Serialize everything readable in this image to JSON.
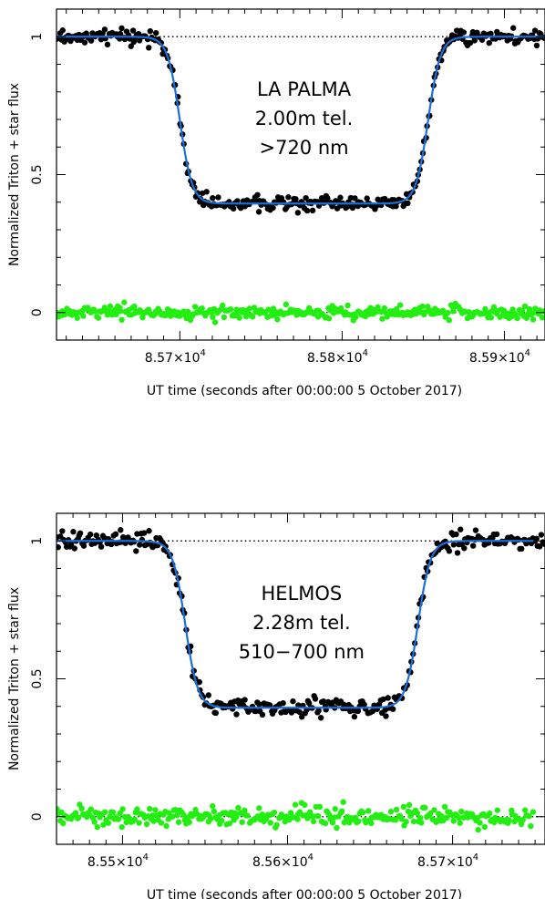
{
  "chart_data": [
    {
      "type": "scatter",
      "title": "",
      "annotation": [
        "LA PALMA",
        "2.00m tel.",
        ">720 nm"
      ],
      "xlabel": "UT time (seconds after 00:00:00 5 October 2017)",
      "ylabel": "Normalized Triton + star flux",
      "xlim": [
        85624,
        85925
      ],
      "ylim": [
        -0.1,
        1.1
      ],
      "x_ticks": [
        {
          "value": 85700,
          "label": "8.57×10",
          "exp": "4"
        },
        {
          "value": 85800,
          "label": "8.58×10",
          "exp": "4"
        },
        {
          "value": 85900,
          "label": "8.59×10",
          "exp": "4"
        }
      ],
      "y_ticks": [
        {
          "value": 0,
          "label": "0"
        },
        {
          "value": 0.5,
          "label": "0.5"
        },
        {
          "value": 1,
          "label": "1"
        }
      ],
      "model": {
        "baseline": 1.0,
        "bottom": 0.395,
        "ingress_mid": 85700,
        "egress_mid": 85853,
        "width": 3.8,
        "x_range": [
          85624,
          85925
        ]
      },
      "series": [
        {
          "role": "observed",
          "color": "#000000",
          "x_range": [
            85624,
            85925
          ],
          "count": 330,
          "noise": 0.013
        },
        {
          "role": "fit",
          "color": "#1a6fdb"
        },
        {
          "role": "residuals",
          "color": "#22ee11",
          "x_range": [
            85624,
            85925
          ],
          "count": 330,
          "noise": 0.012,
          "center": 0.0
        },
        {
          "role": "baseline",
          "color": "#000000",
          "value": 1.0
        }
      ],
      "grid": false
    },
    {
      "type": "scatter",
      "title": "",
      "annotation": [
        "HELMOS",
        "2.28m tel.",
        "510−700 nm"
      ],
      "xlabel": "UT time (seconds after 00:00:00 5 October 2017)",
      "ylabel": "Normalized Triton + star flux",
      "xlim": [
        85460,
        85756
      ],
      "ylim": [
        -0.1,
        1.1
      ],
      "x_ticks": [
        {
          "value": 85500,
          "label": "8.55×10",
          "exp": "4"
        },
        {
          "value": 85600,
          "label": "8.56×10",
          "exp": "4"
        },
        {
          "value": 85700,
          "label": "8.57×10",
          "exp": "4"
        }
      ],
      "y_ticks": [
        {
          "value": 0,
          "label": "0"
        },
        {
          "value": 0.5,
          "label": "0.5"
        },
        {
          "value": 1,
          "label": "1"
        }
      ],
      "model": {
        "baseline": 1.0,
        "bottom": 0.395,
        "ingress_mid": 85538,
        "egress_mid": 85679,
        "width": 3.8,
        "x_range": [
          85460,
          85749
        ]
      },
      "series": [
        {
          "role": "observed",
          "color": "#000000",
          "x_range": [
            85460,
            85756
          ],
          "count": 310,
          "noise": 0.017
        },
        {
          "role": "fit",
          "color": "#1a6fdb"
        },
        {
          "role": "residuals",
          "color": "#22ee11",
          "x_range": [
            85460,
            85749
          ],
          "count": 310,
          "noise": 0.017,
          "center": 0.0
        },
        {
          "role": "baseline",
          "color": "#000000",
          "value": 1.0
        }
      ],
      "grid": false
    }
  ]
}
